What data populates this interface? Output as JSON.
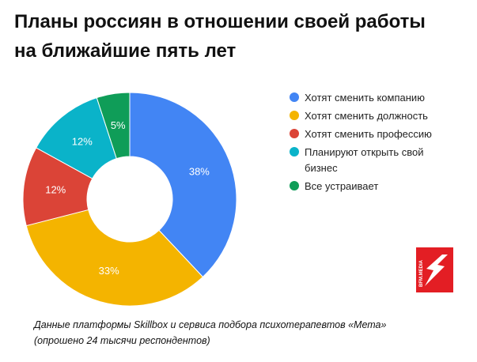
{
  "title": {
    "line1": "Планы россиян в отношении своей работы",
    "line2": "на ближайшие пять лет"
  },
  "chart_data": {
    "type": "pie",
    "variant": "donut",
    "categories": [
      "Хотят сменить компанию",
      "Хотят сменить должность",
      "Хотят сменить профессию",
      "Планируют открыть свой бизнес",
      "Все устраивает"
    ],
    "legend_lines": [
      [
        "Хотят сменить компанию"
      ],
      [
        "Хотят сменить должность"
      ],
      [
        "Хотят сменить профессию"
      ],
      [
        "Планируют открыть свой",
        "бизнес"
      ],
      [
        "Все устраивает"
      ]
    ],
    "values": [
      38,
      33,
      12,
      12,
      5
    ],
    "data_labels": [
      "38%",
      "33%",
      "12%",
      "12%",
      "5%"
    ],
    "colors": [
      "#4285f4",
      "#f4b400",
      "#db4437",
      "#0ab3c9",
      "#0f9d58"
    ],
    "legend_position": "right"
  },
  "logo": {
    "text": "BFM.MEDIA",
    "background": "#e31e24",
    "icon": "lightning-bolt-icon"
  },
  "source": {
    "line1": "Данные платформы Skillbox и сервиса подбора психотерапевтов «Мета»",
    "line2": "(опрошено 24 тысячи респондентов)"
  }
}
